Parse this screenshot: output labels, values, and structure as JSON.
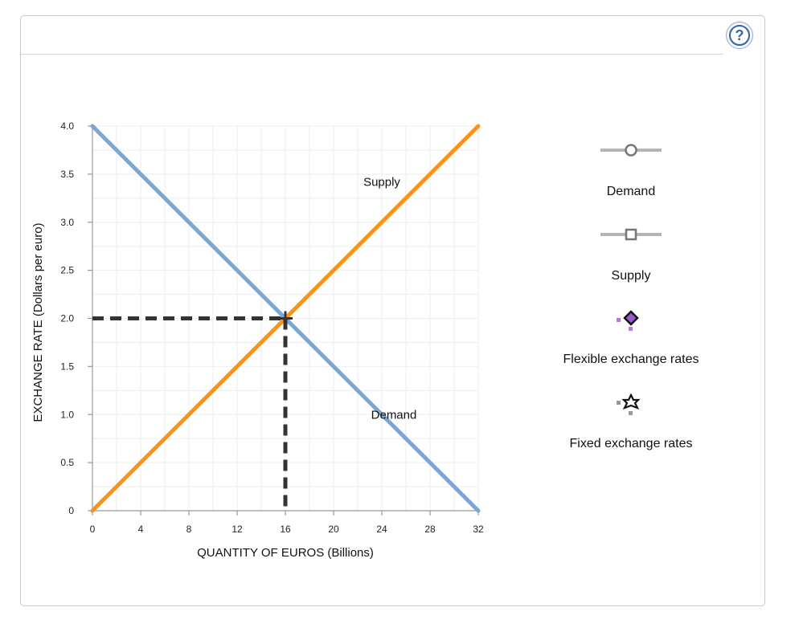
{
  "help": {
    "label": "?"
  },
  "colors": {
    "demand": "#7ba7d4",
    "supply": "#f7941d",
    "dashed": "#333333",
    "grid": "#eeeeee",
    "axis": "#999999"
  },
  "legend": [
    {
      "label": "Demand",
      "icon": "circle-marker-icon"
    },
    {
      "label": "Supply",
      "icon": "square-marker-icon"
    },
    {
      "label": "Flexible exchange rates",
      "icon": "diamond-marker-icon"
    },
    {
      "label": "Fixed exchange rates",
      "icon": "star-marker-icon"
    }
  ],
  "chart_data": {
    "type": "line",
    "xlabel": "QUANTITY OF EUROS (Billions)",
    "ylabel": "EXCHANGE RATE (Dollars per euro)",
    "xlim": [
      0,
      32
    ],
    "ylim": [
      0,
      4.0
    ],
    "x_ticks": [
      "0",
      "4",
      "8",
      "12",
      "16",
      "20",
      "24",
      "28",
      "32"
    ],
    "y_ticks": [
      "0",
      "0.5",
      "1.0",
      "1.5",
      "2.0",
      "2.5",
      "3.0",
      "3.5",
      "4.0"
    ],
    "grid": true,
    "series": [
      {
        "name": "Demand",
        "points": [
          [
            0,
            4.0
          ],
          [
            32,
            0
          ]
        ]
      },
      {
        "name": "Supply",
        "points": [
          [
            0,
            0
          ],
          [
            32,
            4.0
          ]
        ]
      }
    ],
    "annotations": [
      {
        "text": "Supply",
        "x": 24,
        "y": 3.42
      },
      {
        "text": "Demand",
        "x": 25,
        "y": 1.0
      }
    ],
    "equilibrium": {
      "x": 16,
      "y": 2.0
    }
  }
}
